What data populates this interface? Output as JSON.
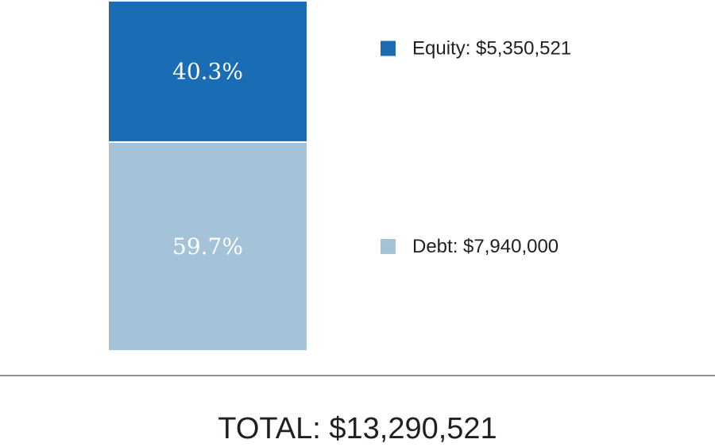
{
  "chart_data": {
    "type": "bar",
    "stacked": true,
    "categories": [
      ""
    ],
    "series": [
      {
        "name": "Equity",
        "value": 5350521,
        "percent_label": "40.3%",
        "legend_label": "Equity: $5,350,521",
        "color": "#1a6db5"
      },
      {
        "name": "Debt",
        "value": 7940000,
        "percent_label": "59.7%",
        "legend_label": "Debt: $7,940,000",
        "color": "#a5c3d8"
      }
    ],
    "total": 13290521,
    "total_label": "TOTAL: $13,290,521",
    "legend_position": "right",
    "grid": false
  }
}
